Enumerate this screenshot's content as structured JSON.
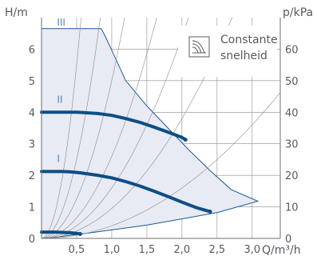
{
  "chart_data": {
    "type": "line",
    "xlabel": "Q/m³/h",
    "ylabel_left": "H/m",
    "ylabel_right": "p/kPa",
    "xlim": [
      0,
      3.4
    ],
    "ylim": [
      0,
      7.0
    ],
    "ylim_right": [
      0,
      70
    ],
    "x_ticks": [
      "0,5",
      "1,0",
      "1,5",
      "2,0",
      "2,5",
      "3,0"
    ],
    "x_tick_values": [
      0.5,
      1.0,
      1.5,
      2.0,
      2.5,
      3.0
    ],
    "y_ticks": [
      "0",
      "1",
      "2",
      "3",
      "4",
      "5",
      "6"
    ],
    "y_tick_values": [
      0,
      1,
      2,
      3,
      4,
      5,
      6
    ],
    "y_ticks_right": [
      "0",
      "10",
      "20",
      "30",
      "40",
      "50",
      "60"
    ],
    "legend": {
      "line1": "Constante",
      "line2": "snelheid",
      "placement": "top-right",
      "icon": "constant-speed-icon"
    },
    "colors": {
      "curve": "#0d4e85",
      "envelope_fill": "#e8eaf4",
      "envelope_line": "#1b5a95",
      "grid": "#8c8c8c",
      "mode_label": "#4a86c2",
      "text": "#555a60"
    },
    "envelope": {
      "x": [
        0.0,
        0.85,
        0.92,
        1.2,
        1.5,
        1.8,
        2.1,
        2.4,
        2.7,
        3.08,
        2.5,
        1.5,
        0.5,
        0.05,
        0.0
      ],
      "y": [
        6.65,
        6.65,
        6.35,
        5.0,
        4.2,
        3.5,
        2.8,
        2.15,
        1.55,
        1.18,
        0.82,
        0.42,
        0.12,
        0.0,
        0.0
      ]
    },
    "series": [
      {
        "mode": "I",
        "x": [
          0.0,
          0.3,
          0.4,
          0.55,
          0.8,
          1.0,
          1.2,
          1.4,
          1.6,
          1.8,
          2.0,
          2.2,
          2.4
        ],
        "y": [
          2.12,
          2.12,
          2.11,
          2.08,
          2.0,
          1.92,
          1.8,
          1.66,
          1.5,
          1.33,
          1.15,
          0.98,
          0.85
        ]
      },
      {
        "mode": "II",
        "x": [
          0.0,
          0.5,
          0.6,
          0.8,
          1.0,
          1.2,
          1.4,
          1.6,
          1.8,
          2.0,
          2.05
        ],
        "y": [
          4.0,
          4.0,
          3.99,
          3.96,
          3.9,
          3.8,
          3.68,
          3.53,
          3.37,
          3.2,
          3.13
        ]
      },
      {
        "mode": "III",
        "x": [
          0.0,
          0.2,
          0.3,
          0.4,
          0.5,
          0.55
        ],
        "y": [
          0.2,
          0.2,
          0.19,
          0.18,
          0.16,
          0.14
        ]
      }
    ],
    "mode_labels": [
      {
        "text": "III",
        "x": 0.22,
        "y": 6.75
      },
      {
        "text": "II",
        "x": 0.22,
        "y": 4.3
      },
      {
        "text": "I",
        "x": 0.22,
        "y": 2.42
      }
    ],
    "system_curve_k": [
      0.4,
      0.95,
      1.6,
      2.6,
      5.0,
      10.0,
      22.0
    ]
  }
}
